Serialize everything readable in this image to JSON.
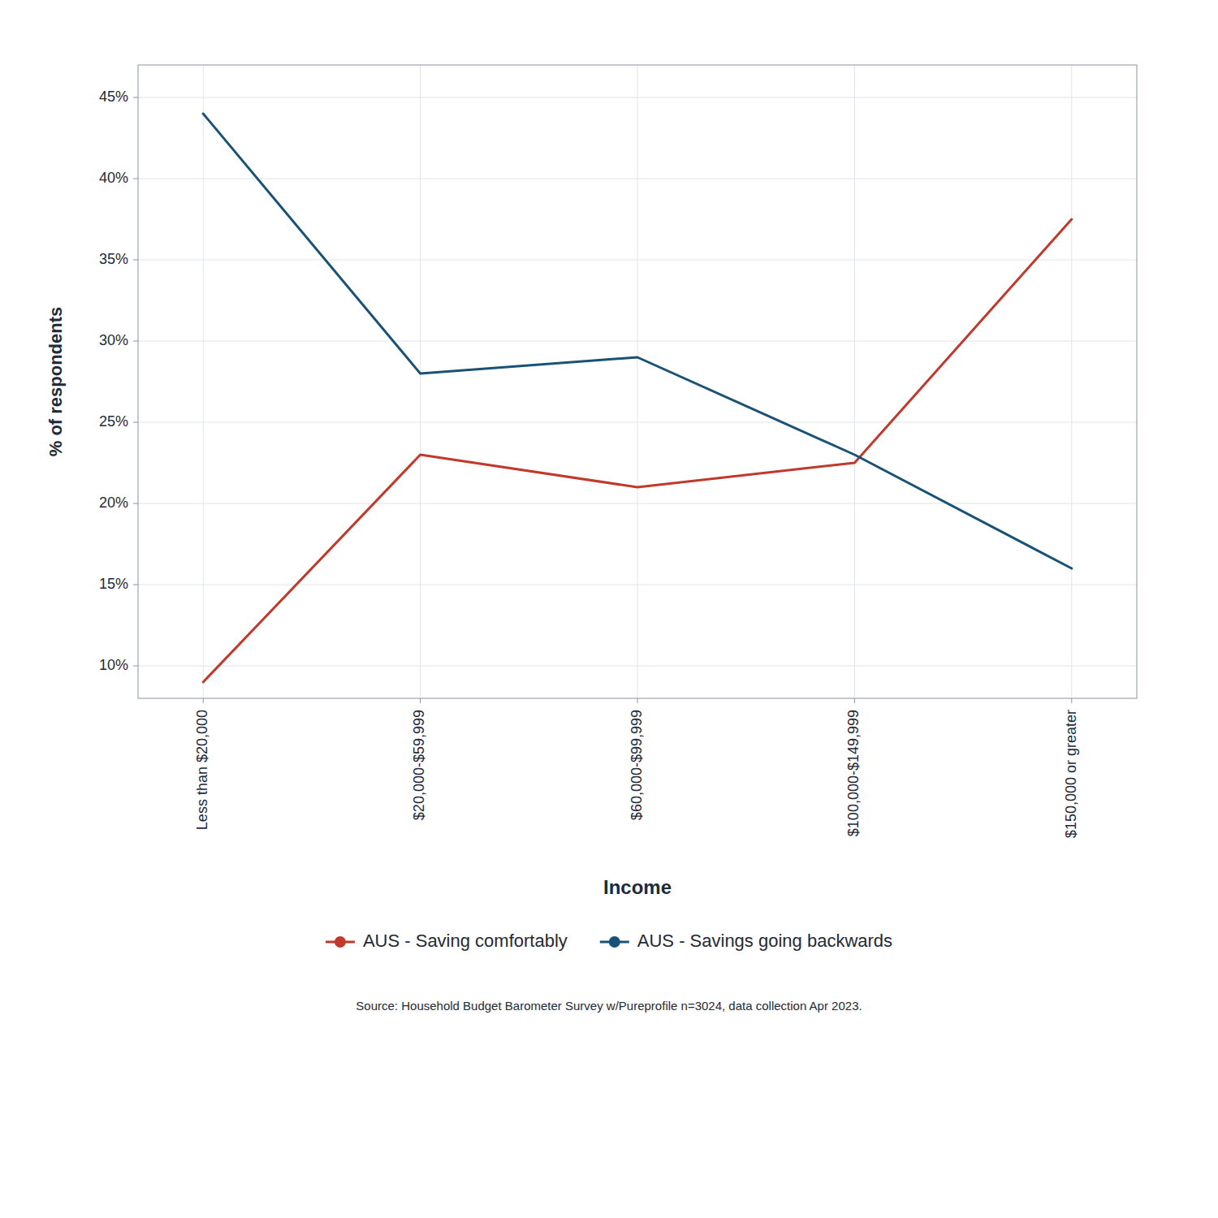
{
  "chart_data": {
    "type": "line",
    "categories": [
      "Less than $20,000",
      "$20,000-$59,999",
      "$60,000-$99,999",
      "$100,000-$149,999",
      "$150,000 or greater"
    ],
    "series": [
      {
        "name": "AUS - Saving comfortably",
        "color": "#c0392b",
        "values": [
          0.09,
          0.23,
          0.21,
          0.225,
          0.375
        ]
      },
      {
        "name": "AUS - Savings going backwards",
        "color": "#1a5276",
        "values": [
          0.44,
          0.28,
          0.29,
          0.23,
          0.16
        ]
      }
    ],
    "ylabel": "% of respondents",
    "xlabel": "Income",
    "ylim": [
      0.08,
      0.47
    ],
    "yticks": [
      {
        "value": 0.1,
        "label": "10%"
      },
      {
        "value": 0.15,
        "label": "15%"
      },
      {
        "value": 0.2,
        "label": "20%"
      },
      {
        "value": 0.25,
        "label": "25%"
      },
      {
        "value": 0.3,
        "label": "30%"
      },
      {
        "value": 0.35,
        "label": "35%"
      },
      {
        "value": 0.4,
        "label": "40%"
      },
      {
        "value": 0.45,
        "label": "45%"
      }
    ],
    "grid": true,
    "legend": "bottom",
    "annotations": [
      "Source: Household Budget Barometer Survey w/Pureprofile n=3024, data collection Apr 2023."
    ]
  }
}
